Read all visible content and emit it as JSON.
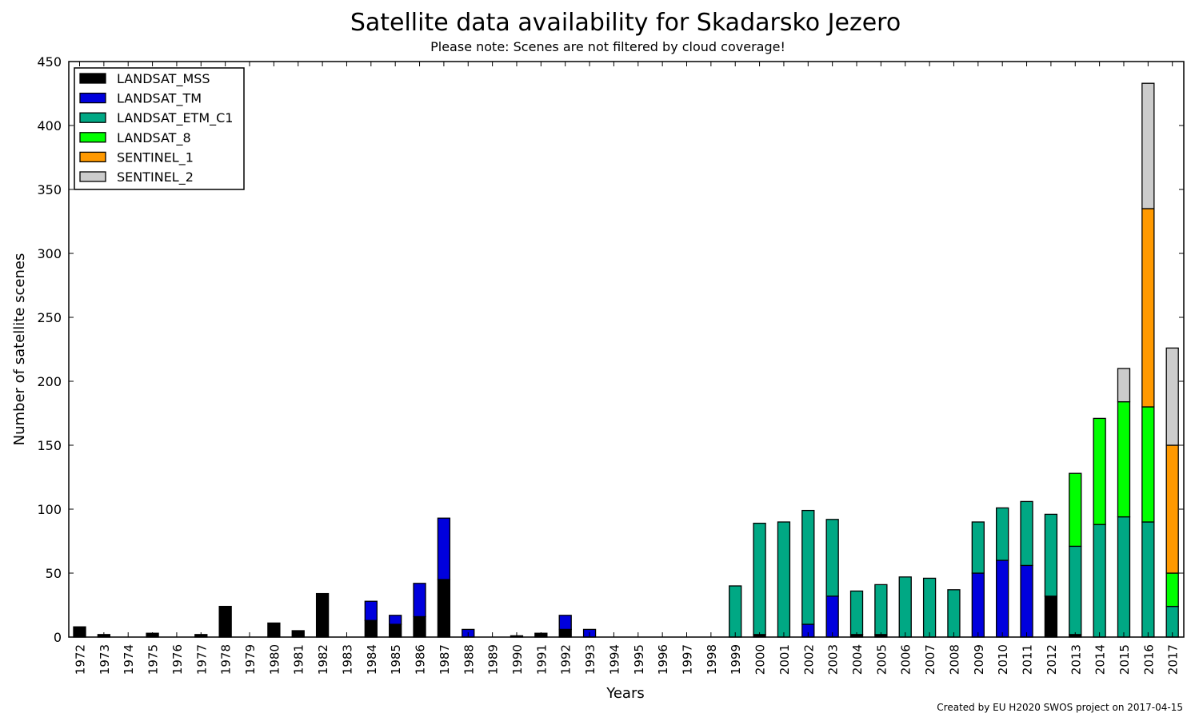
{
  "chart_data": {
    "type": "bar",
    "stacked": true,
    "title": "Satellite data availability for Skadarsko Jezero",
    "subtitle": "Please note: Scenes are not filtered by cloud coverage!",
    "xlabel": "Years",
    "ylabel": "Number of satellite scenes",
    "ylim": [
      0,
      450
    ],
    "yticks": [
      0,
      50,
      100,
      150,
      200,
      250,
      300,
      350,
      400,
      450
    ],
    "grid": false,
    "legend_position": "top-left",
    "footer": "Created by EU H2020 SWOS project on 2017-04-15",
    "categories": [
      "1972",
      "1973",
      "1974",
      "1975",
      "1976",
      "1977",
      "1978",
      "1979",
      "1980",
      "1981",
      "1982",
      "1983",
      "1984",
      "1985",
      "1986",
      "1987",
      "1988",
      "1989",
      "1990",
      "1991",
      "1992",
      "1993",
      "1994",
      "1995",
      "1996",
      "1997",
      "1998",
      "1999",
      "2000",
      "2001",
      "2002",
      "2003",
      "2004",
      "2005",
      "2006",
      "2007",
      "2008",
      "2009",
      "2010",
      "2011",
      "2012",
      "2013",
      "2014",
      "2015",
      "2016",
      "2017"
    ],
    "series": [
      {
        "name": "LANDSAT_MSS",
        "color": "#000000",
        "values": [
          8,
          2,
          0,
          3,
          0,
          2,
          24,
          0,
          11,
          5,
          34,
          0,
          13,
          10,
          16,
          45,
          0,
          0,
          1,
          3,
          6,
          0,
          0,
          0,
          0,
          0,
          0,
          0,
          2,
          0,
          0,
          0,
          2,
          2,
          0,
          0,
          0,
          0,
          0,
          0,
          32,
          2,
          0,
          0,
          0,
          0
        ]
      },
      {
        "name": "LANDSAT_TM",
        "color": "#0000dd",
        "values": [
          0,
          0,
          0,
          0,
          0,
          0,
          0,
          0,
          0,
          0,
          0,
          0,
          15,
          7,
          26,
          48,
          6,
          0,
          0,
          0,
          11,
          6,
          0,
          0,
          0,
          0,
          0,
          0,
          0,
          0,
          10,
          32,
          0,
          0,
          0,
          0,
          0,
          50,
          60,
          56,
          0,
          0,
          0,
          0,
          0,
          0
        ]
      },
      {
        "name": "LANDSAT_ETM_C1",
        "color": "#00a884",
        "values": [
          0,
          0,
          0,
          0,
          0,
          0,
          0,
          0,
          0,
          0,
          0,
          0,
          0,
          0,
          0,
          0,
          0,
          0,
          0,
          0,
          0,
          0,
          0,
          0,
          0,
          0,
          0,
          40,
          87,
          90,
          89,
          60,
          34,
          39,
          47,
          46,
          37,
          40,
          41,
          50,
          64,
          69,
          88,
          94,
          90,
          24
        ]
      },
      {
        "name": "LANDSAT_8",
        "color": "#00ff00",
        "values": [
          0,
          0,
          0,
          0,
          0,
          0,
          0,
          0,
          0,
          0,
          0,
          0,
          0,
          0,
          0,
          0,
          0,
          0,
          0,
          0,
          0,
          0,
          0,
          0,
          0,
          0,
          0,
          0,
          0,
          0,
          0,
          0,
          0,
          0,
          0,
          0,
          0,
          0,
          0,
          0,
          0,
          57,
          83,
          90,
          90,
          26
        ]
      },
      {
        "name": "SENTINEL_1",
        "color": "#ff9900",
        "values": [
          0,
          0,
          0,
          0,
          0,
          0,
          0,
          0,
          0,
          0,
          0,
          0,
          0,
          0,
          0,
          0,
          0,
          0,
          0,
          0,
          0,
          0,
          0,
          0,
          0,
          0,
          0,
          0,
          0,
          0,
          0,
          0,
          0,
          0,
          0,
          0,
          0,
          0,
          0,
          0,
          0,
          0,
          0,
          0,
          155,
          100
        ]
      },
      {
        "name": "SENTINEL_2",
        "color": "#cccccc",
        "values": [
          0,
          0,
          0,
          0,
          0,
          0,
          0,
          0,
          0,
          0,
          0,
          0,
          0,
          0,
          0,
          0,
          0,
          0,
          0,
          0,
          0,
          0,
          0,
          0,
          0,
          0,
          0,
          0,
          0,
          0,
          0,
          0,
          0,
          0,
          0,
          0,
          0,
          0,
          0,
          0,
          0,
          0,
          0,
          26,
          98,
          76
        ]
      }
    ]
  }
}
